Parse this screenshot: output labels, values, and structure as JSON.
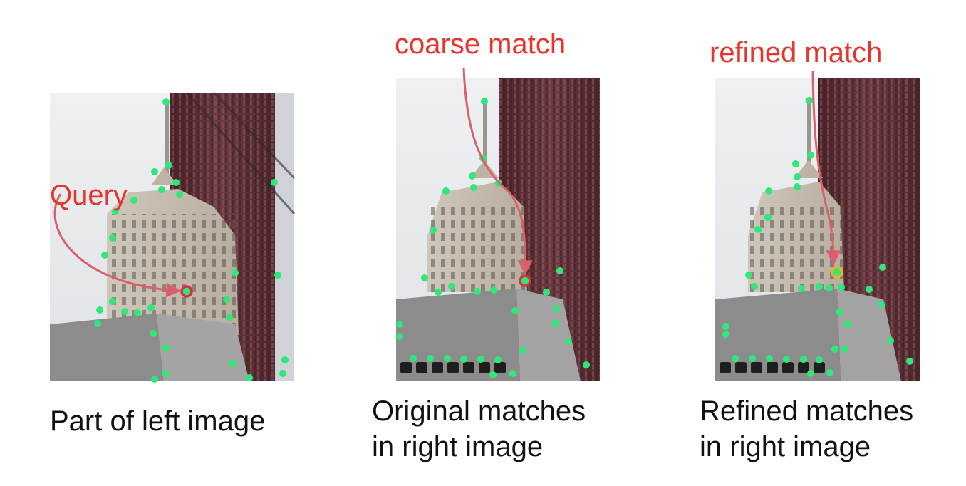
{
  "panels": [
    {
      "id": "left",
      "caption_lines": [
        "Part of left image"
      ],
      "annotation": "Query",
      "marker": "query-point"
    },
    {
      "id": "middle",
      "caption_lines": [
        "Original matches",
        "in right image"
      ],
      "annotation": "coarse match",
      "marker": "coarse-match-point"
    },
    {
      "id": "right",
      "caption_lines": [
        "Refined matches",
        "in right image"
      ],
      "annotation": "refined match",
      "marker": "refined-match-point"
    }
  ],
  "colors": {
    "annotation_text": "#e4362d",
    "arrow": "#d9606a",
    "keypoint": "#2ee87a",
    "query_ring": "#d63045",
    "coarse_ring": "#d63045",
    "refined_ring": "#f0b020",
    "caption_text": "#111111",
    "sky": "#e9ebee",
    "tower_facade": "#c9c0b4",
    "skyscraper": "#5a2f36",
    "roof": "#8f8f8f"
  }
}
